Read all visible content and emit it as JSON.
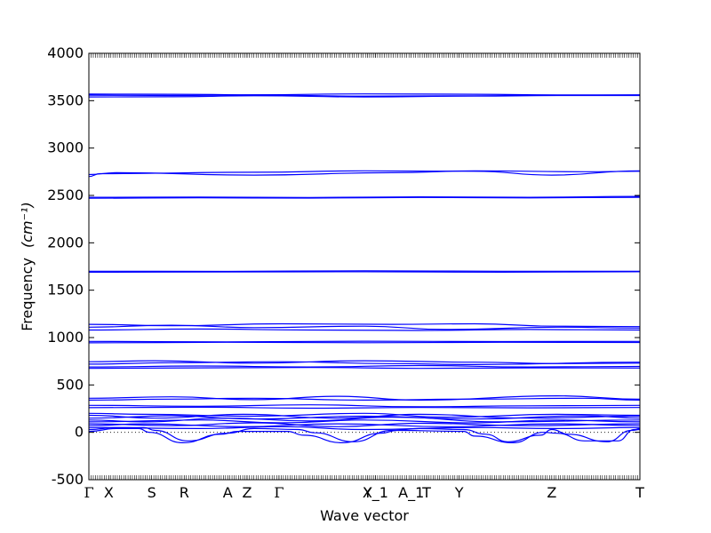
{
  "chart_data": {
    "type": "line",
    "xlabel": "Wave vector",
    "ylabel": "Frequency",
    "ylabel_unit": "(cm⁻¹)",
    "ylim": [
      -500,
      4000
    ],
    "y_ticks": [
      -500,
      0,
      500,
      1000,
      1500,
      2000,
      2500,
      3000,
      3500,
      4000
    ],
    "xlim": [
      0,
      1
    ],
    "kpoints": [
      {
        "label": "Γ",
        "x": 0.0
      },
      {
        "label": "X",
        "x": 0.036
      },
      {
        "label": "S",
        "x": 0.114
      },
      {
        "label": "R",
        "x": 0.173
      },
      {
        "label": "A",
        "x": 0.252
      },
      {
        "label": "Z",
        "x": 0.287
      },
      {
        "label": "Γ",
        "x": 0.345
      },
      {
        "label": "Y",
        "x": 0.506
      },
      {
        "label": "X_1",
        "x": 0.52
      },
      {
        "label": "A_1",
        "x": 0.585
      },
      {
        "label": "T",
        "x": 0.613
      },
      {
        "label": "Y",
        "x": 0.672
      },
      {
        "label": "Z",
        "x": 0.84
      },
      {
        "label": "T",
        "x": 1.0
      }
    ],
    "line_color": "#0000ff",
    "zero_line": "dotted",
    "series": [
      {
        "values": [
          [
            0.0,
            3570
          ],
          [
            0.15,
            3568
          ],
          [
            0.3,
            3562
          ],
          [
            0.5,
            3572
          ],
          [
            0.7,
            3568
          ],
          [
            0.85,
            3560
          ],
          [
            1.0,
            3562
          ]
        ]
      },
      {
        "values": [
          [
            0.0,
            3558
          ],
          [
            0.15,
            3555
          ],
          [
            0.3,
            3560
          ],
          [
            0.5,
            3548
          ],
          [
            0.7,
            3552
          ],
          [
            0.85,
            3558
          ],
          [
            1.0,
            3558
          ]
        ]
      },
      {
        "values": [
          [
            0.0,
            3540
          ],
          [
            0.15,
            3542
          ],
          [
            0.3,
            3552
          ],
          [
            0.5,
            3540
          ],
          [
            0.7,
            3548
          ],
          [
            0.85,
            3555
          ],
          [
            1.0,
            3555
          ]
        ]
      },
      {
        "values": [
          [
            0.0,
            2700
          ],
          [
            0.02,
            2730
          ],
          [
            0.3,
            2745
          ],
          [
            0.5,
            2760
          ],
          [
            0.7,
            2755
          ],
          [
            0.84,
            2715
          ],
          [
            1.0,
            2760
          ]
        ]
      },
      {
        "values": [
          [
            0.0,
            2720
          ],
          [
            0.05,
            2740
          ],
          [
            0.3,
            2715
          ],
          [
            0.55,
            2740
          ],
          [
            0.7,
            2760
          ],
          [
            0.9,
            2750
          ],
          [
            1.0,
            2755
          ]
        ]
      },
      {
        "values": [
          [
            0.0,
            2480
          ],
          [
            0.2,
            2482
          ],
          [
            0.4,
            2478
          ],
          [
            0.6,
            2485
          ],
          [
            0.8,
            2480
          ],
          [
            1.0,
            2490
          ]
        ]
      },
      {
        "values": [
          [
            0.0,
            2470
          ],
          [
            0.2,
            2475
          ],
          [
            0.4,
            2472
          ],
          [
            0.6,
            2478
          ],
          [
            0.8,
            2474
          ],
          [
            1.0,
            2480
          ]
        ]
      },
      {
        "values": [
          [
            0.0,
            1700
          ],
          [
            0.25,
            1698
          ],
          [
            0.5,
            1705
          ],
          [
            0.75,
            1700
          ],
          [
            1.0,
            1700
          ]
        ]
      },
      {
        "values": [
          [
            0.0,
            1690
          ],
          [
            0.25,
            1692
          ],
          [
            0.5,
            1695
          ],
          [
            0.75,
            1690
          ],
          [
            1.0,
            1695
          ]
        ]
      },
      {
        "values": [
          [
            0.0,
            1140
          ],
          [
            0.15,
            1125
          ],
          [
            0.35,
            1145
          ],
          [
            0.55,
            1140
          ],
          [
            0.7,
            1145
          ],
          [
            0.85,
            1120
          ],
          [
            1.0,
            1115
          ]
        ]
      },
      {
        "values": [
          [
            0.0,
            1110
          ],
          [
            0.15,
            1130
          ],
          [
            0.3,
            1105
          ],
          [
            0.5,
            1120
          ],
          [
            0.65,
            1085
          ],
          [
            0.85,
            1110
          ],
          [
            1.0,
            1100
          ]
        ]
      },
      {
        "values": [
          [
            0.0,
            1080
          ],
          [
            0.2,
            1090
          ],
          [
            0.4,
            1080
          ],
          [
            0.6,
            1075
          ],
          [
            0.8,
            1085
          ],
          [
            1.0,
            1080
          ]
        ]
      },
      {
        "values": [
          [
            0.0,
            960
          ],
          [
            0.25,
            955
          ],
          [
            0.5,
            962
          ],
          [
            0.75,
            958
          ],
          [
            1.0,
            960
          ]
        ]
      },
      {
        "values": [
          [
            0.0,
            945
          ],
          [
            0.25,
            950
          ],
          [
            0.5,
            946
          ],
          [
            0.75,
            950
          ],
          [
            1.0,
            948
          ]
        ]
      },
      {
        "values": [
          [
            0.0,
            745
          ],
          [
            0.12,
            755
          ],
          [
            0.3,
            730
          ],
          [
            0.5,
            755
          ],
          [
            0.7,
            740
          ],
          [
            0.85,
            725
          ],
          [
            1.0,
            730
          ]
        ]
      },
      {
        "values": [
          [
            0.0,
            720
          ],
          [
            0.15,
            735
          ],
          [
            0.35,
            745
          ],
          [
            0.55,
            725
          ],
          [
            0.7,
            715
          ],
          [
            1.0,
            740
          ]
        ]
      },
      {
        "values": [
          [
            0.0,
            690
          ],
          [
            0.2,
            700
          ],
          [
            0.4,
            690
          ],
          [
            0.6,
            705
          ],
          [
            0.8,
            690
          ],
          [
            1.0,
            695
          ]
        ]
      },
      {
        "values": [
          [
            0.0,
            675
          ],
          [
            0.2,
            680
          ],
          [
            0.4,
            685
          ],
          [
            0.6,
            675
          ],
          [
            0.8,
            680
          ],
          [
            1.0,
            678
          ]
        ]
      },
      {
        "values": [
          [
            0.0,
            360
          ],
          [
            0.15,
            375
          ],
          [
            0.3,
            345
          ],
          [
            0.45,
            380
          ],
          [
            0.6,
            340
          ],
          [
            0.85,
            385
          ],
          [
            1.0,
            350
          ]
        ]
      },
      {
        "values": [
          [
            0.0,
            340
          ],
          [
            0.15,
            350
          ],
          [
            0.3,
            360
          ],
          [
            0.5,
            340
          ],
          [
            0.7,
            350
          ],
          [
            0.9,
            360
          ],
          [
            1.0,
            340
          ]
        ]
      },
      {
        "values": [
          [
            0.0,
            285
          ],
          [
            0.2,
            275
          ],
          [
            0.4,
            290
          ],
          [
            0.6,
            270
          ],
          [
            0.8,
            280
          ],
          [
            1.0,
            285
          ]
        ]
      },
      {
        "values": [
          [
            0.0,
            260
          ],
          [
            0.2,
            265
          ],
          [
            0.4,
            255
          ],
          [
            0.6,
            262
          ],
          [
            0.8,
            258
          ],
          [
            1.0,
            262
          ]
        ]
      },
      {
        "values": [
          [
            0.0,
            200
          ],
          [
            0.1,
            190
          ],
          [
            0.3,
            170
          ],
          [
            0.5,
            200
          ],
          [
            0.65,
            160
          ],
          [
            0.85,
            190
          ],
          [
            1.0,
            180
          ]
        ]
      },
      {
        "values": [
          [
            0.0,
            180
          ],
          [
            0.12,
            150
          ],
          [
            0.28,
            190
          ],
          [
            0.45,
            150
          ],
          [
            0.6,
            190
          ],
          [
            0.8,
            150
          ],
          [
            1.0,
            170
          ]
        ]
      },
      {
        "values": [
          [
            0.0,
            150
          ],
          [
            0.15,
            175
          ],
          [
            0.3,
            140
          ],
          [
            0.5,
            170
          ],
          [
            0.7,
            140
          ],
          [
            0.9,
            175
          ],
          [
            1.0,
            150
          ]
        ]
      },
      {
        "values": [
          [
            0.0,
            130
          ],
          [
            0.1,
            110
          ],
          [
            0.25,
            150
          ],
          [
            0.4,
            120
          ],
          [
            0.55,
            160
          ],
          [
            0.75,
            110
          ],
          [
            1.0,
            130
          ]
        ]
      },
      {
        "values": [
          [
            0.0,
            110
          ],
          [
            0.2,
            130
          ],
          [
            0.35,
            100
          ],
          [
            0.5,
            130
          ],
          [
            0.7,
            100
          ],
          [
            0.85,
            130
          ],
          [
            1.0,
            110
          ]
        ]
      },
      {
        "values": [
          [
            0.0,
            90
          ],
          [
            0.15,
            70
          ],
          [
            0.3,
            100
          ],
          [
            0.45,
            60
          ],
          [
            0.6,
            95
          ],
          [
            0.8,
            70
          ],
          [
            1.0,
            90
          ]
        ]
      },
      {
        "values": [
          [
            0.0,
            70
          ],
          [
            0.1,
            90
          ],
          [
            0.28,
            60
          ],
          [
            0.45,
            90
          ],
          [
            0.65,
            60
          ],
          [
            0.85,
            90
          ],
          [
            1.0,
            70
          ]
        ]
      },
      {
        "values": [
          [
            0.0,
            50
          ],
          [
            0.2,
            40
          ],
          [
            0.35,
            60
          ],
          [
            0.5,
            30
          ],
          [
            0.7,
            50
          ],
          [
            0.85,
            40
          ],
          [
            1.0,
            50
          ]
        ]
      },
      {
        "values": [
          [
            0.0,
            30
          ],
          [
            0.05,
            50
          ],
          [
            0.1,
            50
          ],
          [
            0.12,
            20
          ],
          [
            0.18,
            -90
          ],
          [
            0.25,
            -10
          ],
          [
            0.3,
            40
          ],
          [
            0.38,
            30
          ],
          [
            0.41,
            -5
          ],
          [
            0.48,
            -100
          ],
          [
            0.55,
            20
          ],
          [
            0.6,
            40
          ],
          [
            0.68,
            30
          ],
          [
            0.72,
            -20
          ],
          [
            0.76,
            -100
          ],
          [
            0.82,
            -30
          ],
          [
            0.84,
            30
          ],
          [
            0.87,
            -20
          ],
          [
            0.94,
            -100
          ],
          [
            0.985,
            20
          ],
          [
            1.0,
            30
          ]
        ]
      },
      {
        "values": [
          [
            0.0,
            10
          ],
          [
            0.05,
            40
          ],
          [
            0.09,
            40
          ],
          [
            0.11,
            0
          ],
          [
            0.17,
            -110
          ],
          [
            0.24,
            -20
          ],
          [
            0.27,
            10
          ],
          [
            0.36,
            10
          ],
          [
            0.39,
            -30
          ],
          [
            0.46,
            -110
          ],
          [
            0.53,
            -10
          ],
          [
            0.56,
            20
          ],
          [
            0.68,
            10
          ],
          [
            0.7,
            -40
          ],
          [
            0.77,
            -110
          ],
          [
            0.825,
            0
          ],
          [
            0.85,
            -10
          ],
          [
            0.9,
            -90
          ],
          [
            0.96,
            -90
          ],
          [
            0.99,
            30
          ],
          [
            1.0,
            40
          ]
        ]
      }
    ]
  }
}
